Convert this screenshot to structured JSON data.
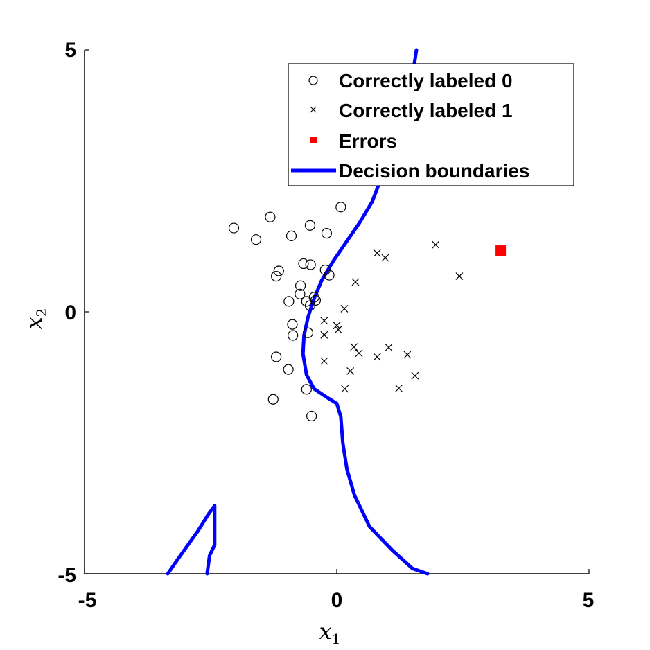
{
  "chart_data": {
    "type": "scatter",
    "xlim": [
      -5,
      5
    ],
    "ylim": [
      -5,
      5
    ],
    "x_ticks": [
      "-5",
      "0",
      "5"
    ],
    "y_ticks": [
      "-5",
      "0",
      "5"
    ],
    "xlabel": {
      "main": "x",
      "sub": "1"
    },
    "ylabel": {
      "main": "x",
      "sub": "2"
    },
    "grid": false,
    "legend_position": "top-right",
    "series": [
      {
        "name": "Correctly labeled 0",
        "marker": "circle",
        "color": "#000000",
        "points": [
          [
            -2.04,
            1.6
          ],
          [
            -1.6,
            1.38
          ],
          [
            -1.32,
            1.81
          ],
          [
            -0.9,
            1.45
          ],
          [
            -0.53,
            1.65
          ],
          [
            -0.2,
            1.5
          ],
          [
            0.08,
            2.0
          ],
          [
            -1.15,
            0.78
          ],
          [
            -1.2,
            0.68
          ],
          [
            -0.66,
            0.92
          ],
          [
            -0.52,
            0.9
          ],
          [
            -0.23,
            0.8
          ],
          [
            -0.15,
            0.7
          ],
          [
            -0.72,
            0.5
          ],
          [
            -0.73,
            0.34
          ],
          [
            -0.95,
            0.2
          ],
          [
            -0.6,
            0.2
          ],
          [
            -0.45,
            0.28
          ],
          [
            -0.42,
            0.22
          ],
          [
            -0.53,
            0.12
          ],
          [
            -0.88,
            -0.24
          ],
          [
            -0.87,
            -0.45
          ],
          [
            -0.57,
            -0.4
          ],
          [
            -1.2,
            -0.86
          ],
          [
            -0.96,
            -1.1
          ],
          [
            -0.6,
            -1.48
          ],
          [
            -1.26,
            -1.67
          ],
          [
            -0.5,
            -1.99
          ]
        ]
      },
      {
        "name": "Correctly labeled 1",
        "marker": "x",
        "color": "#000000",
        "points": [
          [
            1.96,
            1.28
          ],
          [
            0.8,
            1.12
          ],
          [
            0.96,
            1.03
          ],
          [
            2.43,
            0.68
          ],
          [
            0.37,
            0.57
          ],
          [
            0.15,
            0.06
          ],
          [
            -0.25,
            -0.17
          ],
          [
            0.0,
            -0.26
          ],
          [
            0.03,
            -0.34
          ],
          [
            -0.25,
            -0.44
          ],
          [
            0.34,
            -0.67
          ],
          [
            0.44,
            -0.79
          ],
          [
            1.03,
            -0.68
          ],
          [
            0.8,
            -0.86
          ],
          [
            1.4,
            -0.82
          ],
          [
            -0.25,
            -0.94
          ],
          [
            0.27,
            -1.13
          ],
          [
            1.55,
            -1.22
          ],
          [
            0.16,
            -1.47
          ],
          [
            1.23,
            -1.46
          ]
        ]
      },
      {
        "name": "Errors",
        "marker": "square",
        "color": "#ff0000",
        "points": [
          [
            3.25,
            1.17
          ]
        ]
      },
      {
        "name": "Decision boundaries",
        "marker": "line",
        "color": "#0000ff",
        "lines": [
          [
            [
              1.58,
              5.0
            ],
            [
              1.5,
              4.5
            ],
            [
              1.35,
              4.0
            ],
            [
              1.1,
              3.2
            ],
            [
              0.9,
              2.6
            ],
            [
              0.7,
              2.1
            ],
            [
              0.45,
              1.7
            ],
            [
              0.2,
              1.35
            ],
            [
              -0.05,
              1.0
            ],
            [
              -0.3,
              0.6
            ],
            [
              -0.45,
              0.25
            ],
            [
              -0.57,
              -0.1
            ],
            [
              -0.65,
              -0.45
            ],
            [
              -0.67,
              -0.8
            ],
            [
              -0.6,
              -1.2
            ],
            [
              -0.45,
              -1.47
            ],
            [
              -0.2,
              -1.63
            ],
            [
              0.0,
              -1.75
            ],
            [
              0.08,
              -2.0
            ],
            [
              0.12,
              -2.5
            ],
            [
              0.2,
              -3.0
            ],
            [
              0.35,
              -3.5
            ],
            [
              0.65,
              -4.1
            ],
            [
              1.1,
              -4.55
            ],
            [
              1.5,
              -4.9
            ],
            [
              1.8,
              -5.0
            ]
          ],
          [
            [
              -3.35,
              -5.0
            ],
            [
              -3.15,
              -4.72
            ],
            [
              -2.95,
              -4.45
            ],
            [
              -2.75,
              -4.18
            ],
            [
              -2.55,
              -3.87
            ],
            [
              -2.42,
              -3.7
            ],
            [
              -2.42,
              -4.45
            ],
            [
              -2.52,
              -4.65
            ],
            [
              -2.57,
              -5.0
            ]
          ]
        ]
      }
    ]
  }
}
